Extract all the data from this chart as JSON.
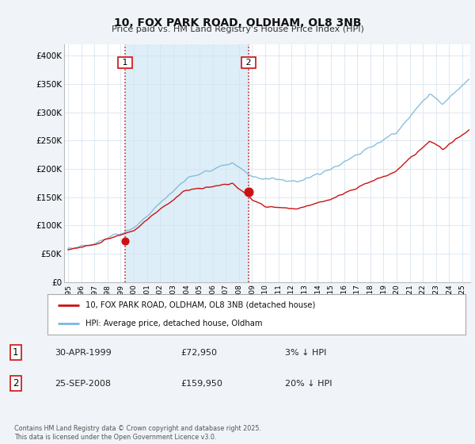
{
  "title": "10, FOX PARK ROAD, OLDHAM, OL8 3NB",
  "subtitle": "Price paid vs. HM Land Registry's House Price Index (HPI)",
  "background_color": "#f0f4f8",
  "plot_bg_color": "#ffffff",
  "grid_color": "#d8e4f0",
  "legend_line1": "10, FOX PARK ROAD, OLDHAM, OL8 3NB (detached house)",
  "legend_line2": "HPI: Average price, detached house, Oldham",
  "sale1_date": "30-APR-1999",
  "sale1_price": "£72,950",
  "sale1_hpi": "3% ↓ HPI",
  "sale2_date": "25-SEP-2008",
  "sale2_price": "£159,950",
  "sale2_hpi": "20% ↓ HPI",
  "footer": "Contains HM Land Registry data © Crown copyright and database right 2025.\nThis data is licensed under the Open Government Licence v3.0.",
  "sale1_year": 1999.33,
  "sale2_year": 2008.73,
  "sale1_price_val": 72950,
  "sale2_price_val": 159950,
  "hpi_color": "#7db8d8",
  "property_color": "#cc1111",
  "vline_color": "#cc1111",
  "shade_color": "#ddeef8",
  "ylim_min": 0,
  "ylim_max": 420000,
  "yticks": [
    0,
    50000,
    100000,
    150000,
    200000,
    250000,
    300000,
    350000,
    400000
  ],
  "ytick_labels": [
    "£0",
    "£50K",
    "£100K",
    "£150K",
    "£200K",
    "£250K",
    "£300K",
    "£350K",
    "£400K"
  ]
}
